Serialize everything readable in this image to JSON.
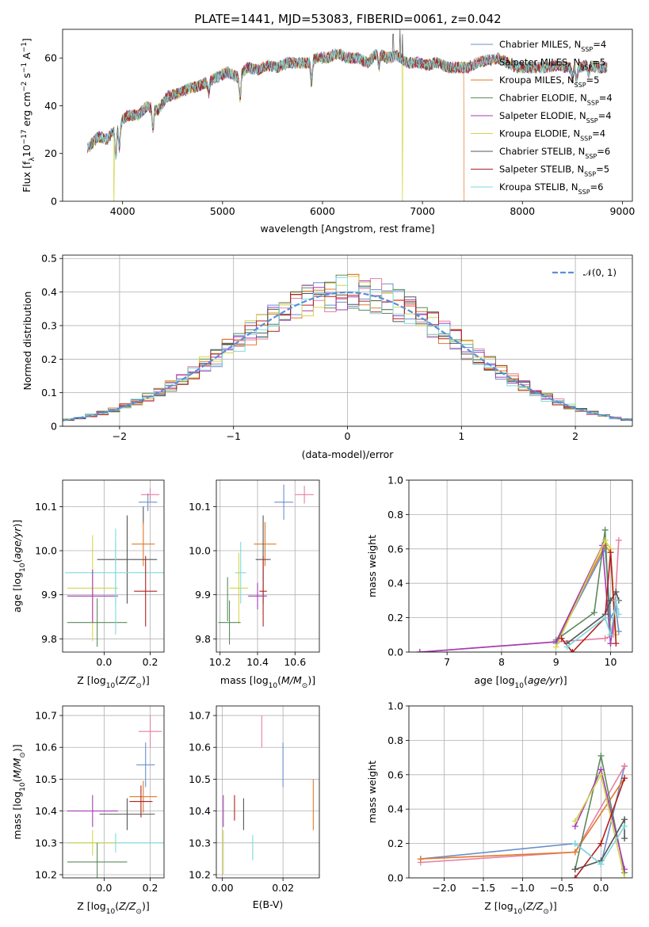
{
  "colors": {
    "chabrier_miles": "#6a8fcf",
    "salpeter_miles": "#e87fa2",
    "kroupa_miles": "#e07a2a",
    "chabrier_elodie": "#5c8a5c",
    "salpeter_elodie": "#a53bb5",
    "kroupa_elodie": "#d4d44a",
    "chabrier_stelib": "#555555",
    "salpeter_stelib": "#b02020",
    "kroupa_stelib": "#7fd9dd",
    "grid": "#b0b0b0",
    "normal_curve": "#5b8fd6"
  },
  "chart_data": [
    {
      "id": "spectrum",
      "type": "line",
      "title": "PLATE=1441, MJD=53083, FIBERID=0061, z=0.042",
      "xlabel": "wavelength [Angstrom, rest frame]",
      "ylabel": "Flux [f_λ 10⁻¹⁷ erg cm⁻² s⁻¹ A⁻¹]",
      "xlim": [
        3400,
        9100
      ],
      "ylim": [
        0,
        72
      ],
      "xticks": [
        4000,
        5000,
        6000,
        7000,
        8000,
        9000
      ],
      "yticks": [
        0,
        20,
        40,
        60
      ],
      "grid": false,
      "legend_position": "top-right",
      "legend": [
        "Chabrier MILES, N_SSP=4",
        "Salpeter MILES, N_SSP=5",
        "Kroupa MILES, N_SSP=5",
        "Chabrier ELODIE, N_SSP=4",
        "Salpeter ELODIE, N_SSP=4",
        "Kroupa ELODIE, N_SSP=4",
        "Chabrier STELIB, N_SSP=6",
        "Salpeter STELIB, N_SSP=5",
        "Kroupa STELIB, N_SSP=6"
      ],
      "continuum": [
        [
          3650,
          22
        ],
        [
          3750,
          27
        ],
        [
          3850,
          26
        ],
        [
          3950,
          32
        ],
        [
          4050,
          36
        ],
        [
          4150,
          36
        ],
        [
          4250,
          40
        ],
        [
          4350,
          38
        ],
        [
          4450,
          44
        ],
        [
          4550,
          45
        ],
        [
          4650,
          47
        ],
        [
          4750,
          48
        ],
        [
          4850,
          50
        ],
        [
          4950,
          52
        ],
        [
          5050,
          54
        ],
        [
          5150,
          52
        ],
        [
          5250,
          56
        ],
        [
          5350,
          55
        ],
        [
          5450,
          57
        ],
        [
          5550,
          56
        ],
        [
          5650,
          58
        ],
        [
          5750,
          58
        ],
        [
          5850,
          58
        ],
        [
          5950,
          60
        ],
        [
          6050,
          60
        ],
        [
          6150,
          62
        ],
        [
          6250,
          60
        ],
        [
          6350,
          60
        ],
        [
          6450,
          58
        ],
        [
          6550,
          62
        ],
        [
          6650,
          60
        ],
        [
          6750,
          61
        ],
        [
          6850,
          58
        ],
        [
          6950,
          58
        ],
        [
          7050,
          57
        ],
        [
          7150,
          58
        ],
        [
          7250,
          56
        ],
        [
          7350,
          56
        ],
        [
          7450,
          56
        ],
        [
          7550,
          58
        ],
        [
          7650,
          59
        ],
        [
          7750,
          60
        ],
        [
          7850,
          58
        ],
        [
          7950,
          56
        ],
        [
          8050,
          56
        ],
        [
          8150,
          56
        ],
        [
          8250,
          56
        ],
        [
          8350,
          57
        ],
        [
          8450,
          56
        ],
        [
          8550,
          56
        ],
        [
          8650,
          57
        ],
        [
          8750,
          56
        ],
        [
          8850,
          56
        ]
      ],
      "absorption_lines": [
        [
          3933,
          -12
        ],
        [
          3968,
          -10
        ],
        [
          4304,
          -8
        ],
        [
          4861,
          -5
        ],
        [
          5175,
          -10
        ],
        [
          5890,
          -9
        ],
        [
          6563,
          -6
        ],
        [
          8500,
          -4
        ],
        [
          8542,
          -5
        ],
        [
          8662,
          -4
        ]
      ],
      "emission_spikes": [
        [
          6707,
          70
        ],
        [
          6775,
          72
        ],
        [
          6800,
          70
        ]
      ],
      "dropouts": [
        {
          "series": "kroupa_elodie",
          "x": 3915
        },
        {
          "series": "kroupa_elodie",
          "x": 6798
        },
        {
          "series": "kroupa_miles",
          "x": 7420
        }
      ]
    },
    {
      "id": "residuals",
      "type": "histogram",
      "xlabel": "(data-model)/error",
      "ylabel": "Normed distribution",
      "xlim": [
        -2.5,
        2.5
      ],
      "ylim": [
        0,
        0.51
      ],
      "xticks": [
        -2,
        -1,
        0,
        1,
        2
      ],
      "yticks": [
        0.0,
        0.1,
        0.2,
        0.3,
        0.4,
        0.5
      ],
      "grid": true,
      "legend_position": "top-right",
      "legend": [
        "𝒩(0, 1)"
      ],
      "bin_width": 0.1,
      "normal_curve": {
        "mean": 0,
        "sigma": 1
      }
    },
    {
      "id": "age_vs_Z",
      "type": "scatter",
      "xlabel": "Z [log₁₀(Z/Z⊙)]",
      "ylabel": "age  [log₁₀(age/yr)]",
      "xlim": [
        -0.18,
        0.26
      ],
      "ylim": [
        9.77,
        10.16
      ],
      "xticks": [
        0.0,
        0.2
      ],
      "xticklabels": [
        "0.0",
        "0.2"
      ],
      "yticks": [
        9.8,
        9.9,
        10.0,
        10.1
      ],
      "yticklabels": [
        "9.8",
        "9.9",
        "10.0",
        "10.1"
      ],
      "grid": true,
      "points": [
        {
          "series": "salpeter_miles",
          "x": 0.2,
          "y": 10.127,
          "xerr": 0.04,
          "yerr": 0.015
        },
        {
          "series": "chabrier_miles",
          "x": 0.19,
          "y": 10.11,
          "xerr": 0.04,
          "yerr": 0.02
        },
        {
          "series": "chabrier_stelib",
          "x": 0.17,
          "y": 10.08,
          "xerr": 0.0,
          "yerr": 0.02
        },
        {
          "series": "kroupa_miles",
          "x": 0.17,
          "y": 10.015,
          "xerr": 0.05,
          "yerr": 0.05
        },
        {
          "series": "chabrier_stelib",
          "x": 0.1,
          "y": 9.98,
          "xerr": 0.13,
          "yerr": 0.1
        },
        {
          "series": "kroupa_stelib",
          "x": 0.05,
          "y": 9.95,
          "xerr": 0.22,
          "yerr": 0.07
        },
        {
          "series": "kroupa_elodie",
          "x": -0.05,
          "y": 9.915,
          "xerr": 0.11,
          "yerr": 0.12
        },
        {
          "series": "salpeter_stelib",
          "x": 0.18,
          "y": 9.908,
          "xerr": 0.05,
          "yerr": 0.08
        },
        {
          "series": "salpeter_elodie",
          "x": -0.05,
          "y": 9.897,
          "xerr": 0.11,
          "yerr": 0.06
        },
        {
          "series": "chabrier_elodie",
          "x": -0.03,
          "y": 9.837,
          "xerr": 0.13,
          "yerr": 0.055
        },
        {
          "series": "kroupa_stelib",
          "x": 0.05,
          "y": 9.93,
          "xerr": 0.0,
          "yerr": 0.12
        }
      ]
    },
    {
      "id": "age_vs_mass",
      "type": "scatter",
      "xlabel": "mass [log₁₀(M/M⊙)]",
      "ylabel": "",
      "xlim": [
        10.18,
        10.73
      ],
      "ylim": [
        9.77,
        10.16
      ],
      "xticks": [
        10.2,
        10.4,
        10.6
      ],
      "xticklabels": [
        "10.2",
        "10.4",
        "10.6"
      ],
      "yticks": [
        9.8,
        9.9,
        10.0,
        10.1
      ],
      "yticklabels": [
        "9.8",
        "9.9",
        "10.0",
        "10.1"
      ],
      "grid": true,
      "points": [
        {
          "series": "salpeter_miles",
          "x": 10.65,
          "y": 10.127,
          "xerr": 0.05,
          "yerr": 0.02
        },
        {
          "series": "chabrier_miles",
          "x": 10.54,
          "y": 10.11,
          "xerr": 0.05,
          "yerr": 0.04
        },
        {
          "series": "kroupa_miles",
          "x": 10.44,
          "y": 10.015,
          "xerr": 0.06,
          "yerr": 0.05
        },
        {
          "series": "chabrier_stelib",
          "x": 10.43,
          "y": 9.98,
          "xerr": 0.04,
          "yerr": 0.1
        },
        {
          "series": "kroupa_stelib",
          "x": 10.31,
          "y": 9.95,
          "xerr": 0.03,
          "yerr": 0.07
        },
        {
          "series": "kroupa_elodie",
          "x": 10.3,
          "y": 9.915,
          "xerr": 0.05,
          "yerr": 0.08
        },
        {
          "series": "salpeter_stelib",
          "x": 10.43,
          "y": 9.908,
          "xerr": 0.02,
          "yerr": 0.08
        },
        {
          "series": "salpeter_elodie",
          "x": 10.4,
          "y": 9.897,
          "xerr": 0.05,
          "yerr": 0.03
        },
        {
          "series": "chabrier_elodie",
          "x": 10.25,
          "y": 9.837,
          "xerr": 0.06,
          "yerr": 0.05
        },
        {
          "series": "chabrier_elodie",
          "x": 10.24,
          "y": 9.89,
          "xerr": 0.0,
          "yerr": 0.05
        }
      ]
    },
    {
      "id": "weight_vs_age",
      "type": "line",
      "xlabel": "age  [log₁₀(age/yr)]",
      "ylabel": "mass weight",
      "xlim": [
        6.3,
        10.4
      ],
      "ylim": [
        0,
        1
      ],
      "xticks": [
        7,
        8,
        9,
        10
      ],
      "yticks": [
        0.0,
        0.2,
        0.4,
        0.6,
        0.8,
        1.0
      ],
      "yticklabels": [
        "0.0",
        "0.2",
        "0.4",
        "0.6",
        "0.8",
        "1.0"
      ],
      "grid": true,
      "series": [
        {
          "key": "chabrier_miles",
          "x": [
            9.0,
            9.9,
            10.0,
            10.1,
            10.15
          ],
          "y": [
            0.05,
            0.6,
            0.2,
            0.25,
            0.12
          ]
        },
        {
          "key": "salpeter_miles",
          "x": [
            6.5,
            9.9,
            10.05,
            10.15
          ],
          "y": [
            0.0,
            0.08,
            0.1,
            0.65
          ]
        },
        {
          "key": "kroupa_miles",
          "x": [
            9.0,
            9.9,
            10.0,
            10.1
          ],
          "y": [
            0.06,
            0.62,
            0.58,
            0.1
          ]
        },
        {
          "key": "chabrier_elodie",
          "x": [
            9.0,
            9.7,
            9.9,
            10.0
          ],
          "y": [
            0.07,
            0.23,
            0.71,
            0.05
          ]
        },
        {
          "key": "salpeter_elodie",
          "x": [
            6.5,
            9.0,
            9.85,
            10.0,
            10.1
          ],
          "y": [
            0.0,
            0.06,
            0.62,
            0.05,
            0.3
          ]
        },
        {
          "key": "kroupa_elodie",
          "x": [
            9.0,
            9.9,
            10.0,
            10.1
          ],
          "y": [
            0.03,
            0.65,
            0.6,
            0.1
          ]
        },
        {
          "key": "chabrier_stelib",
          "x": [
            9.2,
            9.9,
            10.0,
            10.1,
            10.15
          ],
          "y": [
            0.05,
            0.22,
            0.3,
            0.35,
            0.3
          ]
        },
        {
          "key": "salpeter_stelib",
          "x": [
            9.1,
            9.3,
            9.9,
            10.0,
            10.1
          ],
          "y": [
            0.08,
            0.0,
            0.2,
            0.58,
            0.05
          ]
        },
        {
          "key": "kroupa_stelib",
          "x": [
            9.2,
            9.9,
            10.0,
            10.1,
            10.15
          ],
          "y": [
            0.03,
            0.2,
            0.1,
            0.3,
            0.22
          ]
        }
      ]
    },
    {
      "id": "mass_vs_Z",
      "type": "scatter",
      "xlabel": "Z [log₁₀(Z/Z⊙)]",
      "ylabel": "mass [log₁₀(M/M⊙)]",
      "xlim": [
        -0.18,
        0.26
      ],
      "ylim": [
        10.19,
        10.73
      ],
      "xticks": [
        0.0,
        0.2
      ],
      "xticklabels": [
        "0.0",
        "0.2"
      ],
      "yticks": [
        10.2,
        10.3,
        10.4,
        10.5,
        10.6,
        10.7
      ],
      "yticklabels": [
        "10.2",
        "10.3",
        "10.4",
        "10.5",
        "10.6",
        "10.7"
      ],
      "grid": true,
      "points": [
        {
          "series": "salpeter_miles",
          "x": 0.2,
          "y": 10.65,
          "xerr": 0.05,
          "yerr": 0.05
        },
        {
          "series": "chabrier_miles",
          "x": 0.18,
          "y": 10.545,
          "xerr": 0.04,
          "yerr": 0.07
        },
        {
          "series": "kroupa_miles",
          "x": 0.17,
          "y": 10.445,
          "xerr": 0.06,
          "yerr": 0.05
        },
        {
          "series": "salpeter_stelib",
          "x": 0.16,
          "y": 10.43,
          "xerr": 0.05,
          "yerr": 0.05
        },
        {
          "series": "chabrier_stelib",
          "x": 0.1,
          "y": 10.39,
          "xerr": 0.12,
          "yerr": 0.05
        },
        {
          "series": "salpeter_elodie",
          "x": -0.05,
          "y": 10.4,
          "xerr": 0.11,
          "yerr": 0.05
        },
        {
          "series": "kroupa_stelib",
          "x": 0.05,
          "y": 10.3,
          "xerr": 0.21,
          "yerr": 0.03
        },
        {
          "series": "kroupa_elodie",
          "x": -0.05,
          "y": 10.3,
          "xerr": 0.1,
          "yerr": 0.04
        },
        {
          "series": "chabrier_elodie",
          "x": -0.03,
          "y": 10.24,
          "xerr": 0.13,
          "yerr": 0.06
        }
      ]
    },
    {
      "id": "mass_vs_ebv",
      "type": "scatter",
      "xlabel": "E(B-V)",
      "ylabel": "",
      "xlim": [
        -0.002,
        0.032
      ],
      "ylim": [
        10.19,
        10.73
      ],
      "xticks": [
        0.0,
        0.02
      ],
      "xticklabels": [
        "0.00",
        "0.02"
      ],
      "yticks": [
        10.2,
        10.3,
        10.4,
        10.5,
        10.6,
        10.7
      ],
      "yticklabels": [
        "10.2",
        "10.3",
        "10.4",
        "10.5",
        "10.6",
        "10.7"
      ],
      "grid": true,
      "points": [
        {
          "series": "salpeter_miles",
          "x": 0.013,
          "y": 10.65,
          "xerr": 0,
          "yerr": 0.05
        },
        {
          "series": "chabrier_miles",
          "x": 0.02,
          "y": 10.545,
          "xerr": 0,
          "yerr": 0.07
        },
        {
          "series": "kroupa_miles",
          "x": 0.03,
          "y": 10.42,
          "xerr": 0,
          "yerr": 0.08
        },
        {
          "series": "salpeter_stelib",
          "x": 0.004,
          "y": 10.41,
          "xerr": 0,
          "yerr": 0.04
        },
        {
          "series": "chabrier_stelib",
          "x": 0.007,
          "y": 10.39,
          "xerr": 0,
          "yerr": 0.05
        },
        {
          "series": "salpeter_elodie",
          "x": 0.0003,
          "y": 10.4,
          "xerr": 0,
          "yerr": 0.05
        },
        {
          "series": "kroupa_stelib",
          "x": 0.01,
          "y": 10.285,
          "xerr": 0,
          "yerr": 0.04
        },
        {
          "series": "kroupa_elodie",
          "x": 0.0003,
          "y": 10.27,
          "xerr": 0,
          "yerr": 0.07
        }
      ]
    },
    {
      "id": "weight_vs_Z",
      "type": "line",
      "xlabel": "Z [log₁₀(Z/Z⊙)]",
      "ylabel": "mass weight",
      "xlim": [
        -2.45,
        0.4
      ],
      "ylim": [
        0,
        1
      ],
      "xticks": [
        -2.0,
        -1.5,
        -1.0,
        -0.5,
        0.0
      ],
      "xticklabels": [
        "−2.0",
        "−1.5",
        "−1.0",
        "−0.5",
        "0.0"
      ],
      "yticks": [
        0.0,
        0.2,
        0.4,
        0.6,
        0.8,
        1.0
      ],
      "yticklabels": [
        "0.0",
        "0.2",
        "0.4",
        "0.6",
        "0.8",
        "1.0"
      ],
      "grid": true,
      "series": [
        {
          "key": "chabrier_miles",
          "x": [
            -2.3,
            -0.33,
            0.0,
            0.3
          ],
          "y": [
            0.11,
            0.2,
            0.08,
            0.65
          ]
        },
        {
          "key": "salpeter_miles",
          "x": [
            -2.3,
            -0.33,
            0.3
          ],
          "y": [
            0.09,
            0.15,
            0.65
          ]
        },
        {
          "key": "kroupa_miles",
          "x": [
            -2.3,
            -0.33,
            0.3
          ],
          "y": [
            0.11,
            0.15,
            0.58
          ]
        },
        {
          "key": "chabrier_elodie",
          "x": [
            -0.33,
            0.0,
            0.3
          ],
          "y": [
            0.05,
            0.71,
            0.03
          ]
        },
        {
          "key": "salpeter_elodie",
          "x": [
            -0.33,
            0.0,
            0.3
          ],
          "y": [
            0.3,
            0.63,
            0.05
          ]
        },
        {
          "key": "kroupa_elodie",
          "x": [
            -0.33,
            0.0,
            0.3
          ],
          "y": [
            0.33,
            0.6,
            0.0
          ]
        },
        {
          "key": "chabrier_stelib",
          "x": [
            -0.33,
            0.0,
            0.3,
            0.3
          ],
          "y": [
            0.05,
            0.1,
            0.34,
            0.23
          ]
        },
        {
          "key": "salpeter_stelib",
          "x": [
            -0.33,
            0.0,
            0.3
          ],
          "y": [
            0.0,
            0.2,
            0.58
          ]
        },
        {
          "key": "kroupa_stelib",
          "x": [
            -0.33,
            0.0,
            0.3
          ],
          "y": [
            0.2,
            0.08,
            0.3
          ]
        }
      ]
    }
  ]
}
